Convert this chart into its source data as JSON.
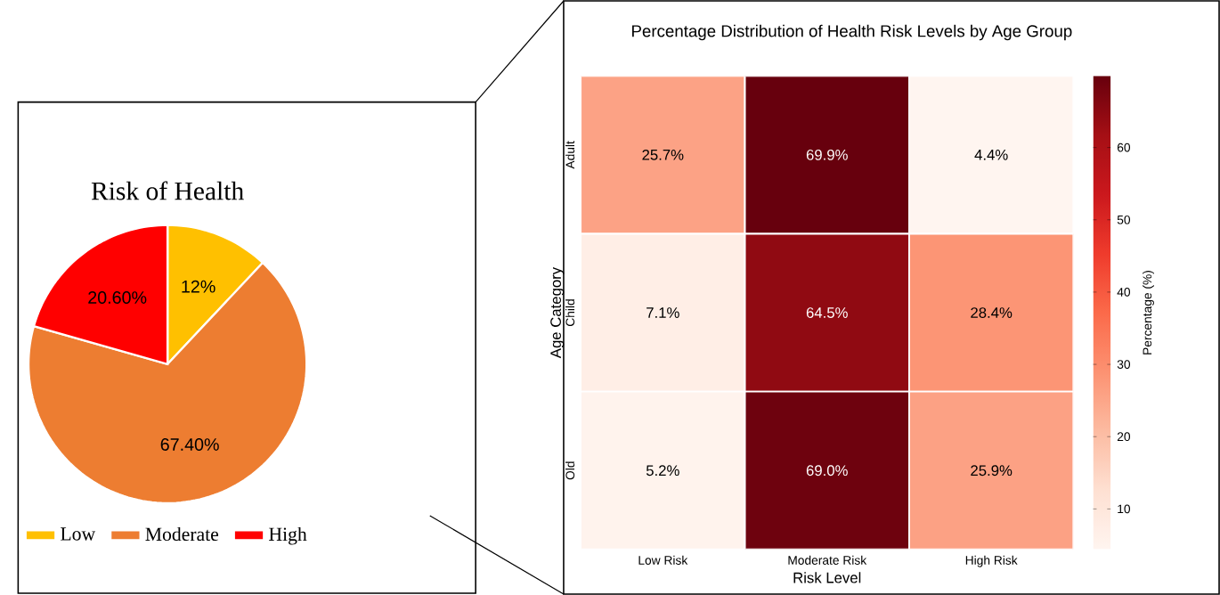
{
  "chart_data": [
    {
      "type": "pie",
      "title": "Risk of Health",
      "categories": [
        "Low",
        "Moderate",
        "High"
      ],
      "values": [
        12,
        67.4,
        20.6
      ],
      "colors": [
        "#ffc000",
        "#ed7d31",
        "#ff0000"
      ],
      "value_labels": [
        "12%",
        "67.40%",
        "20.60%"
      ],
      "legend": "bottom"
    },
    {
      "type": "heatmap",
      "title": "Percentage Distribution of Health Risk Levels by Age Group",
      "xlabel": "Risk Level",
      "ylabel": "Age Category",
      "clabel": "Percentage (%)",
      "categories": [
        "Low Risk",
        "Moderate Risk",
        "High Risk"
      ],
      "y_categories": [
        "Adult",
        "Child",
        "Old"
      ],
      "cells": [
        [
          25.7,
          69.9,
          4.4
        ],
        [
          7.1,
          64.5,
          28.4
        ],
        [
          5.2,
          69.0,
          25.9
        ]
      ],
      "cell_labels": [
        [
          "25.7%",
          "69.9%",
          "4.4%"
        ],
        [
          "7.1%",
          "64.5%",
          "28.4%"
        ],
        [
          "5.2%",
          "69.0%",
          "25.9%"
        ]
      ],
      "clim": [
        4.4,
        69.9
      ],
      "cticks": [
        10,
        20,
        30,
        40,
        50,
        60
      ]
    }
  ]
}
